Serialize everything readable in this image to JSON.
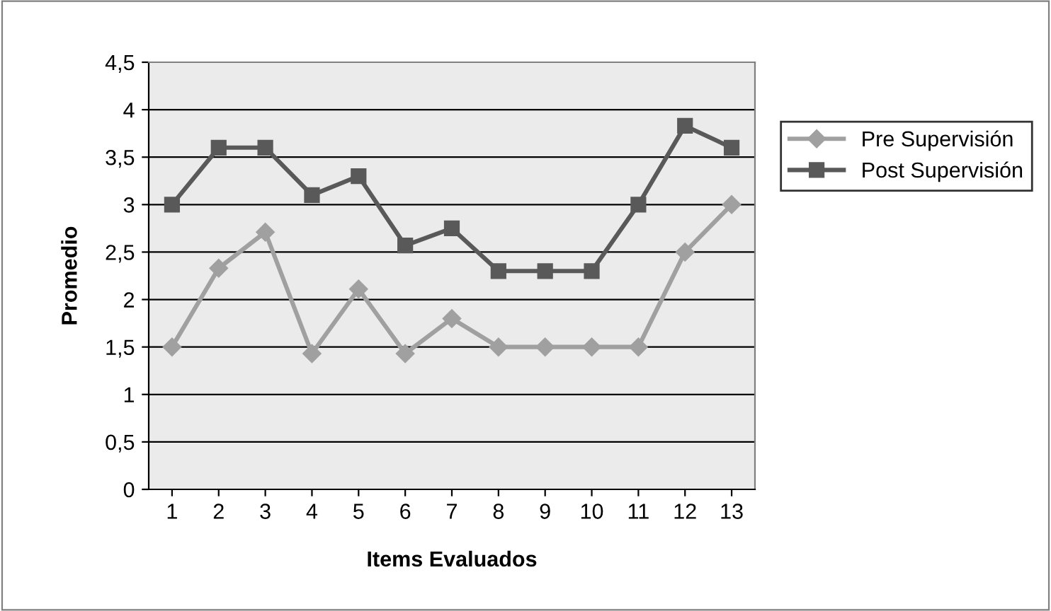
{
  "chart_data": {
    "type": "line",
    "xlabel": "Items Evaluados",
    "ylabel": "Promedio",
    "categories": [
      "1",
      "2",
      "3",
      "4",
      "5",
      "6",
      "7",
      "8",
      "9",
      "10",
      "11",
      "12",
      "13"
    ],
    "series": [
      {
        "name": "Pre Supervisión",
        "color": "#a0a0a0",
        "marker": "diamond",
        "values": [
          1.5,
          2.33,
          2.71,
          1.43,
          2.11,
          1.43,
          1.8,
          1.5,
          1.5,
          1.5,
          1.5,
          2.5,
          3.0
        ]
      },
      {
        "name": "Post Supervisión",
        "color": "#595959",
        "marker": "square",
        "values": [
          3.0,
          3.6,
          3.6,
          3.1,
          3.3,
          2.57,
          2.75,
          2.3,
          2.3,
          2.3,
          3.0,
          3.83,
          3.6
        ]
      }
    ],
    "ylim": [
      0,
      4.5
    ],
    "yticks": [
      0,
      {
        "value": 0.5,
        "label": "0,5"
      },
      1,
      {
        "value": 1.5,
        "label": "1,5"
      },
      2,
      {
        "value": 2.5,
        "label": "2,5"
      },
      3,
      {
        "value": 3.5,
        "label": "3,5"
      },
      4,
      {
        "value": 4.5,
        "label": "4,5"
      }
    ],
    "grid": "y",
    "legend": "right",
    "line_style": "solid"
  }
}
